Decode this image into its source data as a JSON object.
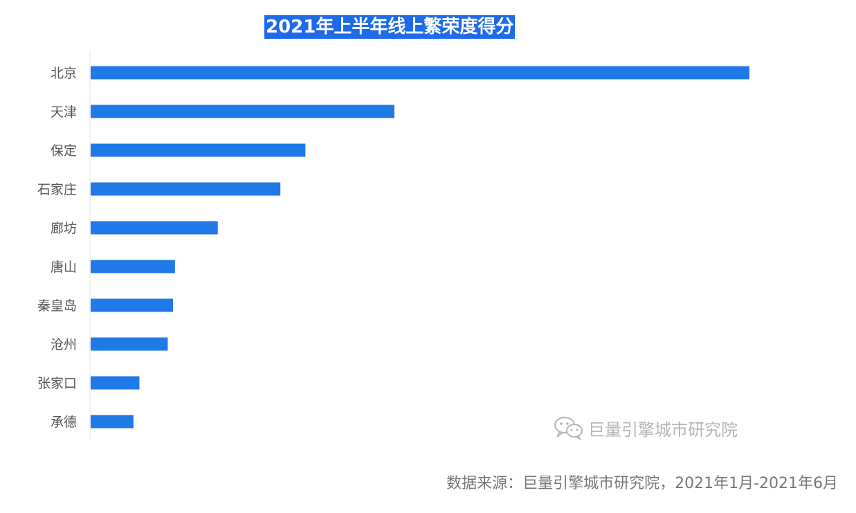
{
  "chart_data": {
    "type": "bar",
    "orientation": "horizontal",
    "title": "2021年上半年线上繁荣度得分",
    "categories": [
      "北京",
      "天津",
      "保定",
      "石家庄",
      "廊坊",
      "唐山",
      "秦皇岛",
      "沧州",
      "张家口",
      "承德"
    ],
    "values": [
      100,
      46.1,
      32.6,
      28.8,
      19.3,
      12.8,
      12.5,
      11.7,
      7.4,
      6.5
    ],
    "xlim": [
      0,
      100
    ],
    "grid": false,
    "legend": "none",
    "bar_color": "#1f7ae8"
  },
  "watermark": {
    "text": "巨量引擎城市研究院",
    "icon": "wechat-icon"
  },
  "source_note": "数据来源：巨量引擎城市研究院，2021年1月-2021年6月"
}
